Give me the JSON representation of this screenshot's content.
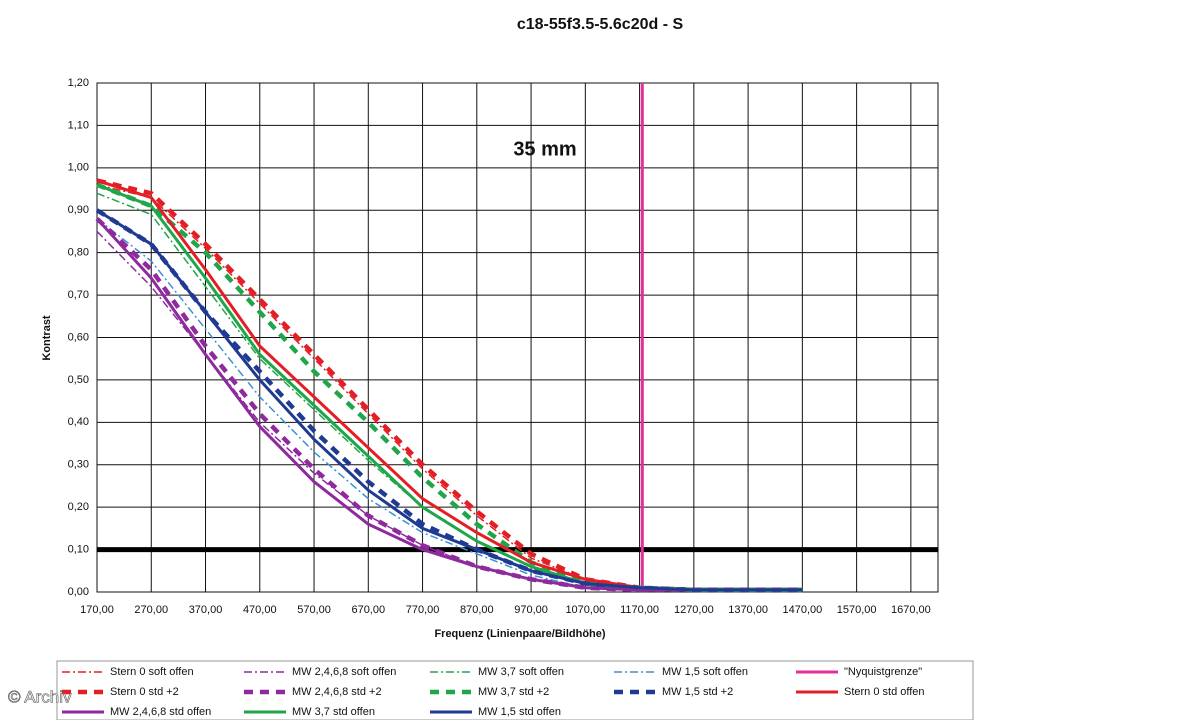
{
  "chart_data": {
    "type": "line",
    "title": "c18-55f3.5-5.6c20d - S",
    "annotation": "35 mm",
    "watermark": "© Archiv",
    "x_label": "Frequenz (Linienpaare/Bildhöhe)",
    "y_label": "Kontrast",
    "x": [
      170,
      270,
      370,
      470,
      570,
      670,
      770,
      870,
      970,
      1070,
      1170,
      1270,
      1370,
      1470
    ],
    "xlim": [
      170,
      1720
    ],
    "ylim": [
      0,
      1.2
    ],
    "xticks": [
      {
        "value": 170,
        "label": "170,00"
      },
      {
        "value": 270,
        "label": "270,00"
      },
      {
        "value": 370,
        "label": "370,00"
      },
      {
        "value": 470,
        "label": "470,00"
      },
      {
        "value": 570,
        "label": "570,00"
      },
      {
        "value": 670,
        "label": "670,00"
      },
      {
        "value": 770,
        "label": "770,00"
      },
      {
        "value": 870,
        "label": "870,00"
      },
      {
        "value": 970,
        "label": "970,00"
      },
      {
        "value": 1070,
        "label": "1070,00"
      },
      {
        "value": 1170,
        "label": "1170,00"
      },
      {
        "value": 1270,
        "label": "1270,00"
      },
      {
        "value": 1370,
        "label": "1370,00"
      },
      {
        "value": 1470,
        "label": "1470,00"
      },
      {
        "value": 1570,
        "label": "1570,00"
      },
      {
        "value": 1670,
        "label": "1670,00"
      }
    ],
    "yticks": [
      {
        "value": 0,
        "label": "0,00"
      },
      {
        "value": 0.1,
        "label": "0,10"
      },
      {
        "value": 0.2,
        "label": "0,20"
      },
      {
        "value": 0.3,
        "label": "0,30"
      },
      {
        "value": 0.4,
        "label": "0,40"
      },
      {
        "value": 0.5,
        "label": "0,50"
      },
      {
        "value": 0.6,
        "label": "0,60"
      },
      {
        "value": 0.7,
        "label": "0,70"
      },
      {
        "value": 0.8,
        "label": "0,80"
      },
      {
        "value": 0.9,
        "label": "0,90"
      },
      {
        "value": 1.0,
        "label": "1,00"
      },
      {
        "value": 1.1,
        "label": "1,10"
      },
      {
        "value": 1.2,
        "label": "1,20"
      }
    ],
    "grid": true,
    "reference_line": 0.1,
    "reference_color": "#000000",
    "series": [
      {
        "name": "Stern 0 soft offen",
        "color": "#e31e24",
        "dash": "dashdot",
        "values": [
          0.96,
          0.93,
          0.81,
          0.68,
          0.55,
          0.42,
          0.29,
          0.18,
          0.08,
          0.03,
          0.01,
          0.005,
          0.005,
          0.005
        ]
      },
      {
        "name": "MW 2,4,6,8 soft offen",
        "color": "#8e2a9e",
        "dash": "dashdot",
        "values": [
          0.85,
          0.72,
          0.56,
          0.4,
          0.28,
          0.18,
          0.11,
          0.06,
          0.03,
          0.01,
          0.005,
          0.005,
          0.005,
          0.005
        ]
      },
      {
        "name": "MW 3,7 soft offen",
        "color": "#1fa64a",
        "dash": "dashdot",
        "values": [
          0.94,
          0.89,
          0.72,
          0.55,
          0.43,
          0.31,
          0.2,
          0.12,
          0.06,
          0.02,
          0.01,
          0.005,
          0.005,
          0.005
        ]
      },
      {
        "name": "MW 1,5 soft offen",
        "color": "#3b8fd0",
        "dash": "dashdot",
        "values": [
          0.88,
          0.78,
          0.62,
          0.46,
          0.33,
          0.22,
          0.14,
          0.09,
          0.04,
          0.01,
          0.005,
          0.005,
          0.005,
          0.005
        ]
      },
      {
        "name": "\"Nyquistgrenze\"",
        "color": "#e0309a",
        "dash": "solid",
        "x": [
          1175,
          1175
        ],
        "values": [
          0,
          1.2
        ]
      },
      {
        "name": "Stern 0 std +2",
        "color": "#e31e24",
        "dash": "dashed",
        "values": [
          0.97,
          0.94,
          0.82,
          0.69,
          0.56,
          0.43,
          0.3,
          0.19,
          0.09,
          0.03,
          0.01,
          0.005,
          0.005,
          0.005
        ]
      },
      {
        "name": "MW 2,4,6,8 std +2",
        "color": "#8e2a9e",
        "dash": "dashed",
        "values": [
          0.88,
          0.76,
          0.58,
          0.42,
          0.29,
          0.18,
          0.11,
          0.06,
          0.03,
          0.01,
          0.005,
          0.005,
          0.005,
          0.005
        ]
      },
      {
        "name": "MW 3,7 std +2",
        "color": "#1fa64a",
        "dash": "dashed",
        "values": [
          0.96,
          0.91,
          0.8,
          0.66,
          0.52,
          0.4,
          0.27,
          0.16,
          0.07,
          0.02,
          0.01,
          0.005,
          0.005,
          0.005
        ]
      },
      {
        "name": "MW 1,5 std +2",
        "color": "#1f3a93",
        "dash": "dashed",
        "values": [
          0.9,
          0.82,
          0.66,
          0.52,
          0.38,
          0.26,
          0.16,
          0.1,
          0.05,
          0.02,
          0.01,
          0.005,
          0.005,
          0.005
        ]
      },
      {
        "name": "Stern 0 std offen",
        "color": "#e31e24",
        "dash": "solid",
        "values": [
          0.97,
          0.93,
          0.76,
          0.58,
          0.46,
          0.34,
          0.22,
          0.14,
          0.07,
          0.03,
          0.01,
          0.005,
          0.005,
          0.005
        ]
      },
      {
        "name": "MW 2,4,6,8 std offen",
        "color": "#8e2a9e",
        "dash": "solid",
        "values": [
          0.88,
          0.74,
          0.56,
          0.39,
          0.26,
          0.16,
          0.1,
          0.06,
          0.03,
          0.01,
          0.005,
          0.005,
          0.005,
          0.005
        ]
      },
      {
        "name": "MW 3,7 std offen",
        "color": "#1fa64a",
        "dash": "solid",
        "values": [
          0.96,
          0.91,
          0.74,
          0.56,
          0.44,
          0.32,
          0.2,
          0.12,
          0.06,
          0.02,
          0.01,
          0.005,
          0.005,
          0.005
        ]
      },
      {
        "name": "MW 1,5 std offen",
        "color": "#1f3a93",
        "dash": "solid",
        "values": [
          0.9,
          0.82,
          0.66,
          0.5,
          0.36,
          0.24,
          0.15,
          0.1,
          0.05,
          0.02,
          0.01,
          0.005,
          0.005,
          0.005
        ]
      }
    ]
  }
}
